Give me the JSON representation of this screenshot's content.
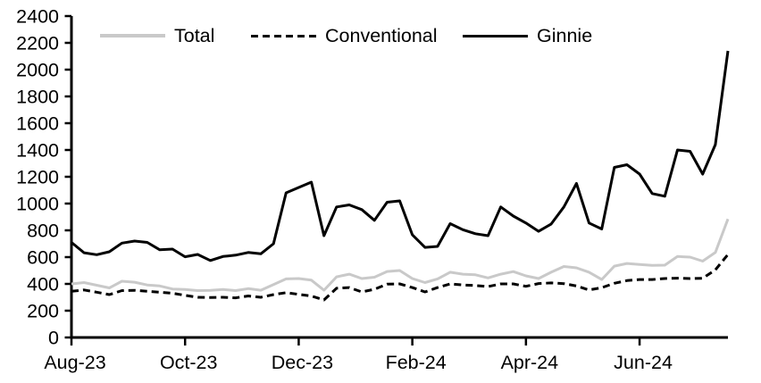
{
  "chart_data": {
    "type": "line",
    "title": "",
    "xlabel": "",
    "ylabel": "",
    "grid": false,
    "legend": {
      "position": "top",
      "entries": [
        "Total",
        "Conventional",
        "Ginnie"
      ]
    },
    "x_tick_labels": [
      "Aug-23",
      "Oct-23",
      "Dec-23",
      "Feb-24",
      "Apr-24",
      "Jun-24"
    ],
    "x_tick_indices": [
      0,
      9,
      18,
      27,
      36,
      45
    ],
    "x_frequency": "weekly",
    "n_points": 53,
    "y_axis": {
      "min": 0,
      "max": 2400,
      "step": 200,
      "ticks": [
        0,
        200,
        400,
        600,
        800,
        1000,
        1200,
        1400,
        1600,
        1800,
        2000,
        2200,
        2400
      ]
    },
    "series": [
      {
        "name": "Total",
        "color": "#c9c9c9",
        "style": "solid",
        "values": [
          400,
          410,
          390,
          370,
          420,
          413,
          392,
          385,
          362,
          358,
          350,
          352,
          358,
          350,
          365,
          353,
          395,
          437,
          440,
          428,
          353,
          453,
          473,
          440,
          450,
          493,
          500,
          440,
          410,
          437,
          487,
          473,
          468,
          445,
          473,
          492,
          460,
          440,
          487,
          530,
          520,
          487,
          433,
          533,
          553,
          545,
          538,
          540,
          605,
          600,
          570,
          635,
          885
        ]
      },
      {
        "name": "Conventional",
        "color": "#000000",
        "style": "dashed",
        "values": [
          345,
          355,
          338,
          320,
          350,
          352,
          345,
          338,
          330,
          315,
          300,
          298,
          300,
          296,
          310,
          300,
          320,
          335,
          322,
          310,
          280,
          367,
          373,
          340,
          360,
          398,
          400,
          373,
          340,
          373,
          400,
          392,
          388,
          380,
          400,
          400,
          382,
          403,
          407,
          402,
          385,
          355,
          372,
          405,
          425,
          433,
          433,
          440,
          443,
          440,
          442,
          505,
          620
        ]
      },
      {
        "name": "Ginnie",
        "color": "#000000",
        "style": "solid",
        "values": [
          710,
          633,
          618,
          640,
          705,
          720,
          710,
          655,
          660,
          603,
          620,
          575,
          605,
          615,
          635,
          625,
          700,
          1080,
          1120,
          1160,
          760,
          975,
          990,
          955,
          875,
          1010,
          1020,
          767,
          673,
          680,
          850,
          805,
          775,
          760,
          975,
          907,
          855,
          793,
          847,
          975,
          1150,
          855,
          810,
          1270,
          1290,
          1220,
          1075,
          1055,
          1400,
          1390,
          1220,
          1440,
          2140
        ]
      }
    ]
  }
}
